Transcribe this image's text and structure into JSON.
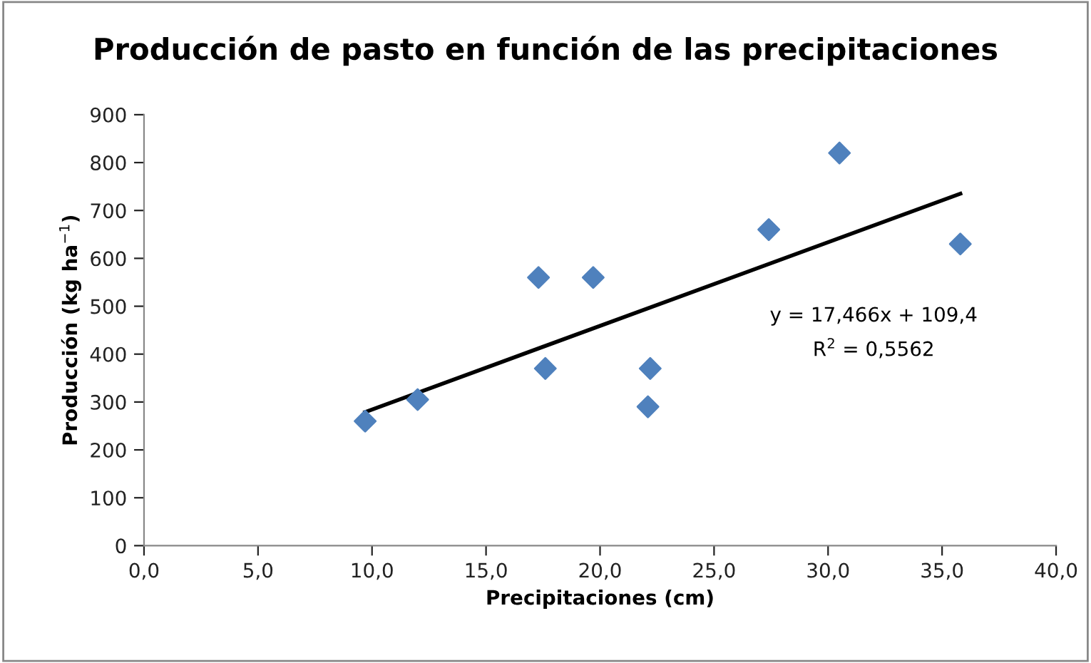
{
  "chart_data": {
    "type": "scatter",
    "title": "Producción de pasto en función de las precipitaciones",
    "xlabel": "Precipitaciones (cm)",
    "ylabel": "Producción (kg ha$^{−1}$)",
    "series": [
      {
        "type": "scatter",
        "color": "#4f81bd",
        "marker": "diamond",
        "x": [
          9.7,
          12.0,
          17.3,
          17.6,
          19.7,
          22.2,
          22.1,
          27.4,
          30.5,
          35.8
        ],
        "values": [
          260,
          305,
          560,
          370,
          560,
          370,
          290,
          660,
          820,
          630
        ]
      },
      {
        "type": "line",
        "color": "#000000",
        "marker": "none",
        "x": [
          9.7,
          35.8
        ],
        "values": [
          279,
          735
        ]
      }
    ],
    "annotations": [
      "y = 17,466x + 109,4",
      "R$^{2}$ = 0,5562"
    ],
    "xlim": [
      0,
      40
    ],
    "xticks": [
      {
        "value": 0,
        "label": "0,0"
      },
      {
        "value": 5,
        "label": "5,0"
      },
      {
        "value": 10,
        "label": "10,0"
      },
      {
        "value": 15,
        "label": "15,0"
      },
      {
        "value": 20,
        "label": "20,0"
      },
      {
        "value": 25,
        "label": "25,0"
      },
      {
        "value": 30,
        "label": "30,0"
      },
      {
        "value": 35,
        "label": "35,0"
      },
      {
        "value": 40,
        "label": "40,0"
      }
    ],
    "ylim": [
      0,
      900
    ],
    "yticks": [
      0,
      100,
      200,
      300,
      400,
      500,
      600,
      700,
      800,
      900
    ],
    "grid": false,
    "legend": false
  }
}
